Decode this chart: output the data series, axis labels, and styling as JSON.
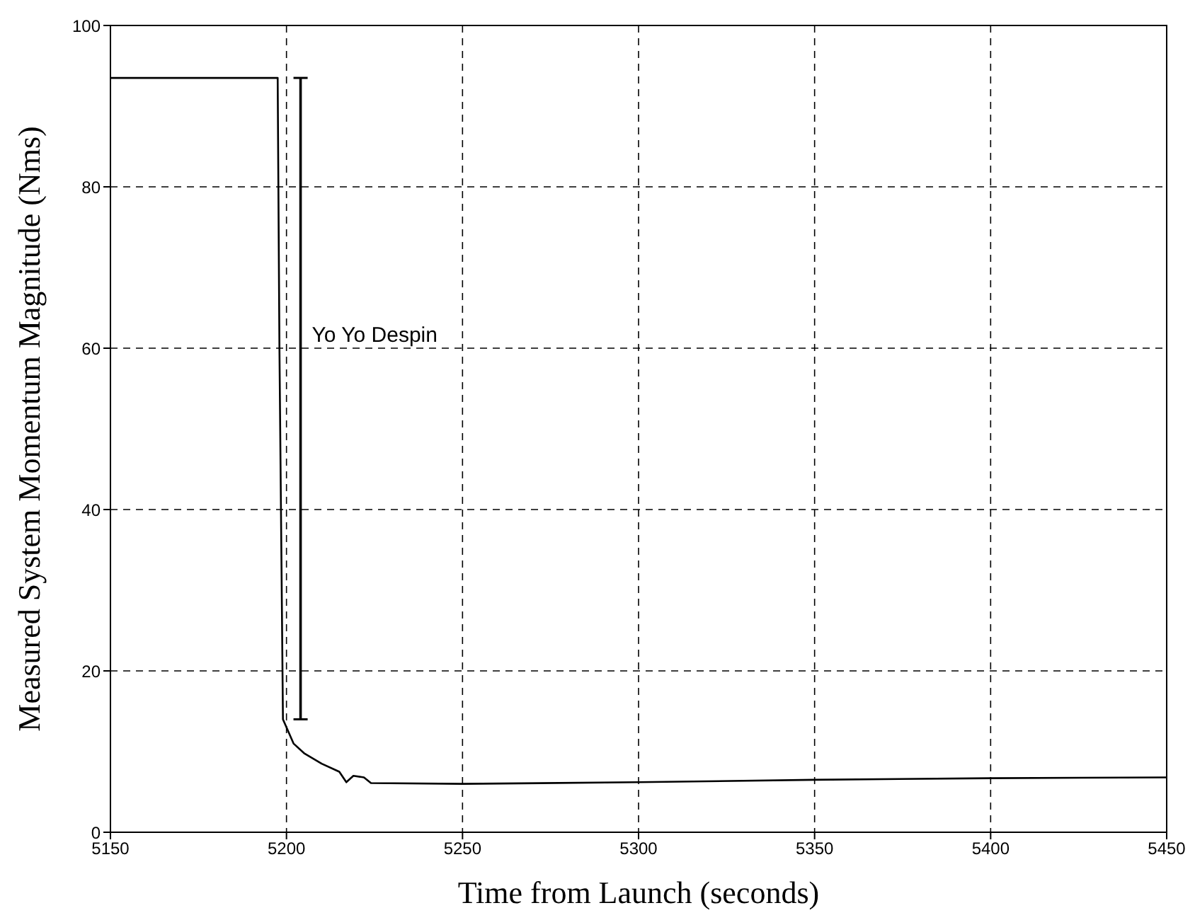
{
  "chart_data": {
    "type": "line",
    "xlabel": "Time from Launch (seconds)",
    "ylabel": "Measured System Momentum Magnitude (Nms)",
    "x": [
      5150,
      5197.5,
      5198,
      5199,
      5200,
      5202,
      5205,
      5210,
      5215,
      5217,
      5219,
      5222,
      5224,
      5250,
      5300,
      5350,
      5400,
      5450
    ],
    "series": [
      {
        "color": "#000000",
        "values": [
          93.5,
          93.5,
          60,
          14,
          13,
          11,
          9.8,
          8.5,
          7.5,
          6.2,
          7,
          6.8,
          6.1,
          6.0,
          6.2,
          6.5,
          6.7,
          6.8
        ]
      },
      {
        "type": "line",
        "color": "#000000",
        "x": [
          5204,
          5204
        ],
        "values": [
          93.5,
          14
        ]
      }
    ],
    "xlim": [
      5150,
      5450
    ],
    "xticks": [
      5150,
      5200,
      5250,
      5300,
      5350,
      5400,
      5450
    ],
    "ylim": [
      0,
      100
    ],
    "yticks": [
      0,
      20,
      40,
      60,
      80,
      100
    ],
    "grid": true,
    "marker": "none",
    "line_style": "solid",
    "annotations": [
      "Yo Yo Despin"
    ]
  }
}
